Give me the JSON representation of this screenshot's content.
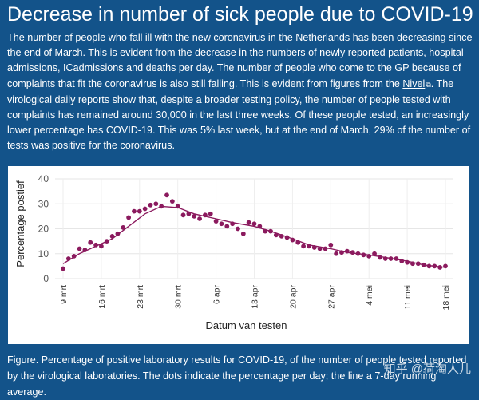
{
  "page": {
    "title": "Decrease in number of sick people due to COVID-19",
    "intro_before_link": "The number of people who fall ill with the new coronavirus in the Netherlands has been decreasing since the end of March. This is evident from the decrease in the numbers of newly reported patients, hospital admissions, ICadmissions and deaths per day. The number of people who come to the GP because of complaints that fit the coronavirus is also still falling. This is evident from figures from the ",
    "intro_link": "Nivel",
    "intro_after_link": ". The virological daily reports show that, despite a broader testing policy, the number of people tested with complaints has remained around 30,000 in the last three weeks. Of these people tested, an increasingly lower percentage has COVID-19. This was 5% last week, but at the end of March, 29% of the number of tests was positive for the coronavirus.",
    "caption": "Figure. Percentage of positive laboratory results for COVID-19, of the number of people tested reported by the virological laboratories. The dots indicate the percentage per day; the line a 7-day running average.",
    "watermark": "知乎 @荷淘人儿"
  },
  "colors": {
    "background": "#13538a",
    "series": "#8b1a5e",
    "text": "#ffffff"
  },
  "icons": {
    "external_link": "external-link-icon"
  },
  "chart_data": {
    "type": "scatter",
    "xlabel": "Datum van testen",
    "ylabel": "Percentage postief",
    "ylim": [
      0,
      40
    ],
    "yticks": [
      0,
      10,
      20,
      30,
      40
    ],
    "xticks": [
      "9 mrt",
      "16 mrt",
      "23 mrt",
      "30 mrt",
      "6 apr",
      "13 apr",
      "20 apr",
      "27 apr",
      "4 mei",
      "11 mei",
      "18 mei"
    ],
    "grid": true,
    "series": [
      {
        "kind": "points",
        "description": "percentage per day",
        "x": [
          "9 mrt",
          "10 mrt",
          "11 mrt",
          "12 mrt",
          "13 mrt",
          "14 mrt",
          "15 mrt",
          "16 mrt",
          "17 mrt",
          "18 mrt",
          "19 mrt",
          "20 mrt",
          "21 mrt",
          "22 mrt",
          "23 mrt",
          "24 mrt",
          "25 mrt",
          "26 mrt",
          "27 mrt",
          "28 mrt",
          "29 mrt",
          "30 mrt",
          "31 mrt",
          "1 apr",
          "2 apr",
          "3 apr",
          "4 apr",
          "5 apr",
          "6 apr",
          "7 apr",
          "8 apr",
          "9 apr",
          "10 apr",
          "11 apr",
          "12 apr",
          "13 apr",
          "14 apr",
          "15 apr",
          "16 apr",
          "17 apr",
          "18 apr",
          "19 apr",
          "20 apr",
          "21 apr",
          "22 apr",
          "23 apr",
          "24 apr",
          "25 apr",
          "26 apr",
          "27 apr",
          "28 apr",
          "29 apr",
          "30 apr",
          "1 mei",
          "2 mei",
          "3 mei",
          "4 mei",
          "5 mei",
          "6 mei",
          "7 mei",
          "8 mei",
          "9 mei",
          "10 mei",
          "11 mei",
          "12 mei",
          "13 mei",
          "14 mei",
          "15 mei",
          "16 mei",
          "17 mei",
          "18 mei"
        ],
        "y": [
          4,
          8,
          9,
          12,
          11.5,
          14.5,
          13.5,
          13,
          15,
          17,
          18,
          20.5,
          24.5,
          27,
          27,
          28,
          29.5,
          30,
          29,
          33.5,
          31,
          29,
          25.5,
          26,
          25,
          24,
          25.5,
          26,
          23,
          22,
          21,
          22,
          20,
          18,
          22.5,
          22,
          21,
          19,
          19,
          17.5,
          17,
          16.5,
          15.5,
          14.5,
          13,
          13,
          12.5,
          12,
          12,
          13.5,
          10,
          10.5,
          11,
          10.5,
          10,
          9.5,
          9,
          10,
          8.5,
          8,
          8,
          8,
          7,
          6.5,
          6,
          6,
          5.5,
          5,
          5,
          4.5,
          5
        ]
      },
      {
        "kind": "line",
        "description": "7-day running average",
        "x": [
          "9 mrt",
          "12 mrt",
          "15 mrt",
          "18 mrt",
          "21 mrt",
          "24 mrt",
          "27 mrt",
          "30 mrt",
          "2 apr",
          "6 apr",
          "9 apr",
          "13 apr",
          "16 apr",
          "20 apr",
          "23 apr",
          "27 apr",
          "30 apr",
          "4 mei",
          "7 mei",
          "11 mei",
          "14 mei",
          "18 mei"
        ],
        "y": [
          6,
          10,
          13,
          16,
          21,
          26,
          29,
          28.5,
          26,
          24,
          22.5,
          21,
          19,
          16,
          13.5,
          12,
          10.5,
          9.5,
          8.5,
          7,
          5.5,
          4.5
        ]
      }
    ]
  }
}
